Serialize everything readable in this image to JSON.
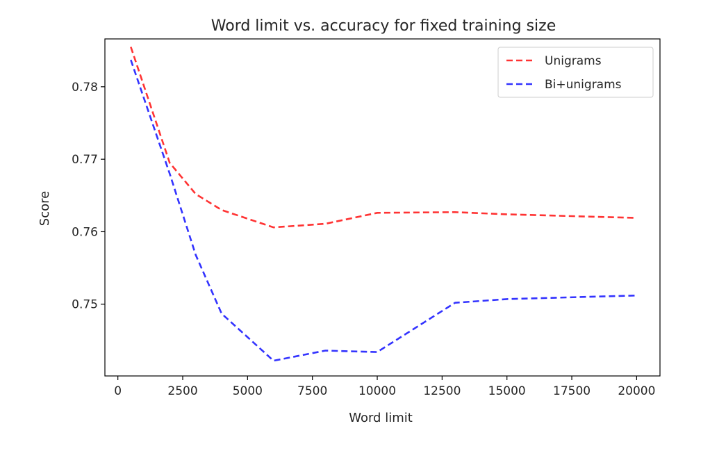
{
  "chart_data": {
    "type": "line",
    "title": "Word limit vs. accuracy for fixed training size",
    "xlabel": "Word limit",
    "ylabel": "Score",
    "xlim": [
      -500,
      20900
    ],
    "ylim": [
      0.7401,
      0.7866
    ],
    "x_ticks": [
      0,
      2500,
      5000,
      7500,
      10000,
      12500,
      15000,
      17500,
      20000
    ],
    "y_ticks": [
      0.75,
      0.76,
      0.77,
      0.78
    ],
    "grid": false,
    "legend_position": "top-right",
    "line_style": "dashed",
    "series": [
      {
        "name": "Unigrams",
        "color": "#ff0000",
        "x": [
          500,
          2000,
          3000,
          4000,
          6000,
          8000,
          10000,
          13000,
          15000,
          20000
        ],
        "y": [
          0.7855,
          0.7695,
          0.7652,
          0.763,
          0.7606,
          0.7611,
          0.7626,
          0.7627,
          0.7624,
          0.7619
        ]
      },
      {
        "name": "Bi+unigrams",
        "color": "#0000ff",
        "x": [
          500,
          2000,
          3000,
          4000,
          6000,
          8000,
          10000,
          13000,
          15000,
          20000
        ],
        "y": [
          0.7837,
          0.768,
          0.7568,
          0.7487,
          0.7422,
          0.7436,
          0.7434,
          0.7502,
          0.7507,
          0.7512
        ]
      }
    ]
  }
}
